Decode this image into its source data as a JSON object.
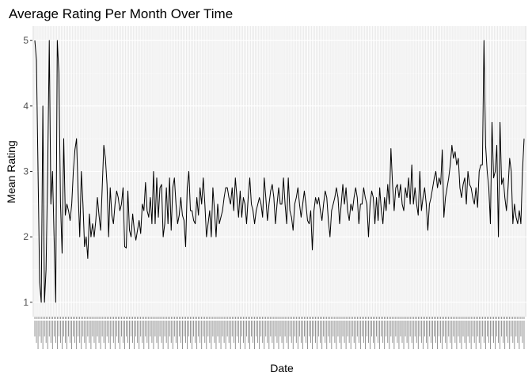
{
  "chart_data": {
    "type": "line",
    "title": "Average Rating Per Month Over Time",
    "xlabel": "Date",
    "ylabel": "Mean Rating",
    "ylim": [
      0.78,
      5.22
    ],
    "yticks": [
      1,
      2,
      3,
      4,
      5
    ],
    "grid": true,
    "legend": "none",
    "colors": {
      "panel": "#ebebeb",
      "grid_major": "#ffffff",
      "grid_minor": "#f5f5f5",
      "line": "#000000"
    },
    "x_note": "categorical monthly dates; tick labels are too dense to read",
    "series": [
      {
        "values": [
          5,
          4.7,
          3,
          1.3,
          1,
          4,
          1,
          1.5,
          3,
          5,
          2.5,
          3,
          2,
          1,
          5,
          4.5,
          2.5,
          1.75,
          3.5,
          2.33,
          2.5,
          2.4,
          2.25,
          2.5,
          3,
          3.33,
          3.5,
          2.67,
          2,
          3,
          2.5,
          1.85,
          2,
          1.67,
          2.35,
          2,
          2.2,
          2,
          2.25,
          2.6,
          2.33,
          2.1,
          2.75,
          3.4,
          3.2,
          2.8,
          2,
          2.75,
          2.33,
          2.2,
          2.5,
          2.7,
          2.6,
          2.4,
          2.5,
          2.75,
          1.85,
          1.83,
          2.7,
          2.1,
          2,
          2.35,
          2.1,
          1.95,
          2.1,
          2.25,
          2.05,
          2.5,
          2.4,
          2.83,
          2.4,
          2.3,
          2.6,
          2.2,
          3,
          2.2,
          2.9,
          2.3,
          2.75,
          2.8,
          2,
          2.2,
          2.75,
          2.2,
          2.9,
          2.1,
          2.75,
          2.9,
          2.5,
          2.2,
          2.33,
          2.6,
          2.33,
          2.25,
          1.85,
          2.75,
          3,
          2.4,
          2.4,
          2.25,
          2.2,
          2.6,
          2.33,
          2.75,
          2.5,
          2.9,
          2.5,
          2,
          2.2,
          2.4,
          2,
          2.75,
          2.4,
          2,
          2.5,
          2.2,
          2.3,
          2.4,
          2.6,
          2.75,
          2.75,
          2.6,
          2.5,
          2.75,
          2.4,
          2.9,
          2.6,
          2.3,
          2.7,
          2.3,
          2.6,
          2.5,
          2.2,
          2.6,
          2.9,
          2.5,
          2.4,
          2.2,
          2.4,
          2.5,
          2.6,
          2.5,
          2.3,
          2.9,
          2.6,
          2.25,
          2.5,
          2.7,
          2.8,
          2.6,
          2.2,
          2.5,
          2.75,
          2.5,
          2.5,
          2.9,
          2.5,
          2.2,
          2.9,
          2.4,
          2.3,
          2.1,
          2.5,
          2.6,
          2.75,
          2.5,
          2.3,
          2.5,
          2.7,
          2.5,
          2.25,
          2.2,
          2.4,
          1.8,
          2.4,
          2.6,
          2.5,
          2.6,
          2.4,
          2.25,
          2.5,
          2.7,
          2.6,
          2.25,
          2,
          2.4,
          2.5,
          2.6,
          2.75,
          2.6,
          2.2,
          2.5,
          2.8,
          2.5,
          2.75,
          2.4,
          2.25,
          2.5,
          2.4,
          2.6,
          2.75,
          2.6,
          2.2,
          2.5,
          2.5,
          2.75,
          2.6,
          2.5,
          2,
          2.5,
          2.7,
          2.6,
          2.2,
          2.6,
          2.25,
          2.75,
          2.4,
          2.2,
          2.6,
          2.4,
          2.8,
          2.5,
          3.35,
          2.8,
          2.4,
          2.75,
          2.8,
          2.6,
          2.8,
          2.5,
          2.4,
          2.75,
          2.6,
          2.9,
          2.5,
          3.1,
          2.5,
          2.75,
          2.5,
          2.33,
          3,
          2.4,
          2.6,
          2.75,
          2.5,
          2.1,
          2.5,
          2.6,
          2.75,
          2.9,
          3,
          2.75,
          2.9,
          2.8,
          3.33,
          2.3,
          2.6,
          2.75,
          2.9,
          3.1,
          3.4,
          3.2,
          3.3,
          3.1,
          3.2,
          2.75,
          2.6,
          2.8,
          2.9,
          2.5,
          3,
          2.8,
          2.75,
          2.6,
          2.5,
          2.75,
          2.45,
          3,
          3.1,
          3.1,
          5,
          3.4,
          3,
          2.75,
          2.2,
          3.75,
          2.9,
          3,
          3.4,
          2,
          3.75,
          2.8,
          2.9,
          2.6,
          2.4,
          2.75,
          3.2,
          3,
          2.2,
          2.5,
          2.3,
          2.2,
          2.4,
          2.2,
          3,
          3.5
        ]
      }
    ]
  }
}
